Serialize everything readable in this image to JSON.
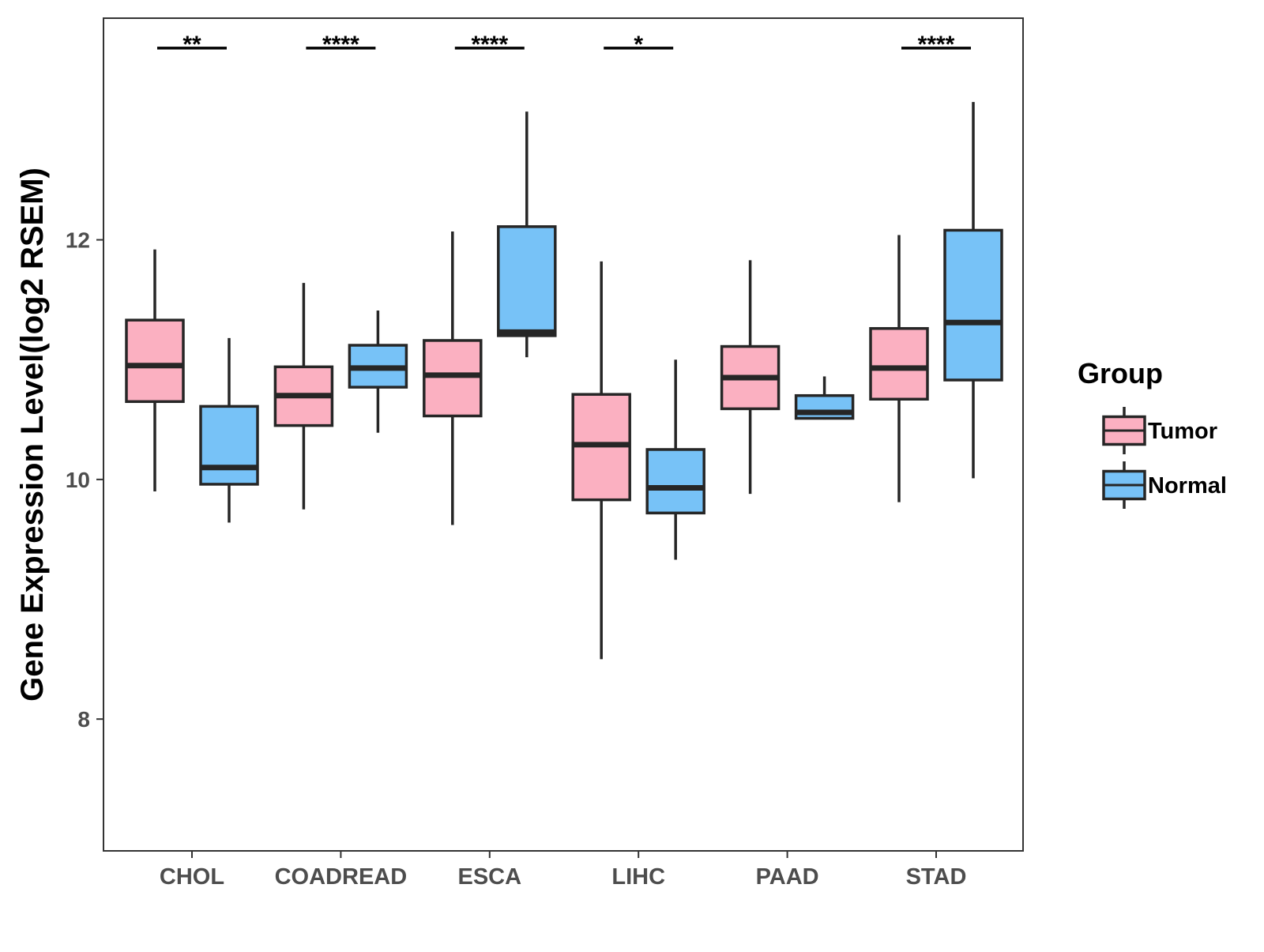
{
  "chart_data": {
    "type": "box",
    "title": "",
    "xlabel": "",
    "ylabel": "Gene Expression Level(log2 RSEM)",
    "ylim": [
      6.9,
      13.85
    ],
    "yticks": [
      8,
      10,
      12
    ],
    "ytick_labels": [
      "8",
      "10",
      "12"
    ],
    "grid": false,
    "legend": {
      "title": "Group",
      "position": "right",
      "entries": [
        "Tumor",
        "Normal"
      ]
    },
    "colors": {
      "Tumor": "#fbb0c1",
      "Normal": "#77c2f7",
      "outline": "#262626"
    },
    "categories": [
      "CHOL",
      "COADREAD",
      "ESCA",
      "LIHC",
      "PAAD",
      "STAD"
    ],
    "series": [
      {
        "name": "Tumor",
        "boxes": [
          {
            "lower_whisker": 9.9,
            "q1": 10.65,
            "median": 10.95,
            "q3": 11.33,
            "upper_whisker": 11.92
          },
          {
            "lower_whisker": 9.75,
            "q1": 10.45,
            "median": 10.7,
            "q3": 10.94,
            "upper_whisker": 11.64
          },
          {
            "lower_whisker": 9.62,
            "q1": 10.53,
            "median": 10.87,
            "q3": 11.16,
            "upper_whisker": 12.07
          },
          {
            "lower_whisker": 8.5,
            "q1": 9.83,
            "median": 10.29,
            "q3": 10.71,
            "upper_whisker": 11.82
          },
          {
            "lower_whisker": 9.88,
            "q1": 10.59,
            "median": 10.85,
            "q3": 11.11,
            "upper_whisker": 11.83
          },
          {
            "lower_whisker": 9.81,
            "q1": 10.67,
            "median": 10.93,
            "q3": 11.26,
            "upper_whisker": 12.04
          }
        ]
      },
      {
        "name": "Normal",
        "boxes": [
          {
            "lower_whisker": 9.64,
            "q1": 9.96,
            "median": 10.1,
            "q3": 10.61,
            "upper_whisker": 11.18
          },
          {
            "lower_whisker": 10.39,
            "q1": 10.77,
            "median": 10.93,
            "q3": 11.12,
            "upper_whisker": 11.41
          },
          {
            "lower_whisker": 11.02,
            "q1": 11.2,
            "median": 11.23,
            "q3": 12.11,
            "upper_whisker": 13.07
          },
          {
            "lower_whisker": 9.33,
            "q1": 9.72,
            "median": 9.93,
            "q3": 10.25,
            "upper_whisker": 11.0
          },
          {
            "lower_whisker": 10.5,
            "q1": 10.51,
            "median": 10.56,
            "q3": 10.7,
            "upper_whisker": 10.86
          },
          {
            "lower_whisker": 10.01,
            "q1": 10.83,
            "median": 11.31,
            "q3": 12.08,
            "upper_whisker": 13.15
          }
        ]
      }
    ],
    "significance": [
      {
        "category": "CHOL",
        "label": "**"
      },
      {
        "category": "COADREAD",
        "label": "****"
      },
      {
        "category": "ESCA",
        "label": "****"
      },
      {
        "category": "LIHC",
        "label": "*"
      },
      {
        "category": "STAD",
        "label": "****"
      }
    ],
    "significance_y": 13.6
  }
}
